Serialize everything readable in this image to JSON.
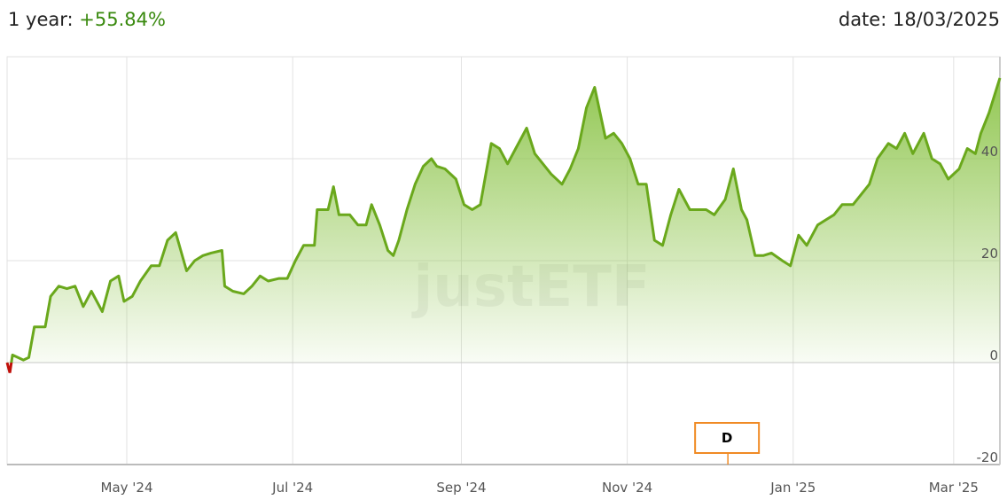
{
  "header": {
    "period_label": "1 year:",
    "period_value": "+55.84%",
    "date_label": "date: 18/03/2025"
  },
  "colors": {
    "line": "#6aa81c",
    "negative": "#c0100a",
    "fill_top": "#8cc449",
    "marker": "#f08a24",
    "positive_text": "#3a8a0f"
  },
  "watermark": "justETF",
  "chart_data": {
    "type": "area",
    "ylim": [
      -20,
      60
    ],
    "xlim": [
      "2024-03-18",
      "2025-03-18"
    ],
    "grid": true,
    "y_ticks": [
      {
        "value": 40,
        "label": "40"
      },
      {
        "value": 20,
        "label": "20"
      },
      {
        "value": 0,
        "label": "0"
      },
      {
        "value": -20,
        "label": "-20"
      }
    ],
    "x_ticks": [
      {
        "date": "2024-05-01",
        "label": "May '24"
      },
      {
        "date": "2024-07-01",
        "label": "Jul '24"
      },
      {
        "date": "2024-09-01",
        "label": "Sep '24"
      },
      {
        "date": "2024-11-01",
        "label": "Nov '24"
      },
      {
        "date": "2025-01-01",
        "label": "Jan '25"
      },
      {
        "date": "2025-03-01",
        "label": "Mar '25"
      }
    ],
    "markers": [
      {
        "date": "2024-12-08",
        "label": "D"
      }
    ],
    "series": [
      {
        "points": [
          [
            "2024-03-18",
            0
          ],
          [
            "2024-03-19",
            -2
          ],
          [
            "2024-03-20",
            1.5
          ],
          [
            "2024-03-24",
            0.5
          ],
          [
            "2024-03-26",
            1
          ],
          [
            "2024-03-28",
            7
          ],
          [
            "2024-04-01",
            7
          ],
          [
            "2024-04-03",
            13
          ],
          [
            "2024-04-06",
            15
          ],
          [
            "2024-04-09",
            14.5
          ],
          [
            "2024-04-12",
            15
          ],
          [
            "2024-04-15",
            11
          ],
          [
            "2024-04-18",
            14
          ],
          [
            "2024-04-22",
            10
          ],
          [
            "2024-04-25",
            16
          ],
          [
            "2024-04-28",
            17
          ],
          [
            "2024-04-30",
            12
          ],
          [
            "2024-05-03",
            13
          ],
          [
            "2024-05-06",
            16
          ],
          [
            "2024-05-10",
            19
          ],
          [
            "2024-05-13",
            19
          ],
          [
            "2024-05-16",
            24
          ],
          [
            "2024-05-19",
            25.5
          ],
          [
            "2024-05-23",
            18
          ],
          [
            "2024-05-26",
            20
          ],
          [
            "2024-05-29",
            21
          ],
          [
            "2024-06-01",
            21.5
          ],
          [
            "2024-06-05",
            22
          ],
          [
            "2024-06-06",
            15
          ],
          [
            "2024-06-09",
            14
          ],
          [
            "2024-06-13",
            13.5
          ],
          [
            "2024-06-16",
            15
          ],
          [
            "2024-06-19",
            17
          ],
          [
            "2024-06-22",
            16
          ],
          [
            "2024-06-26",
            16.5
          ],
          [
            "2024-06-29",
            16.5
          ],
          [
            "2024-07-02",
            20
          ],
          [
            "2024-07-05",
            23
          ],
          [
            "2024-07-09",
            23
          ],
          [
            "2024-07-10",
            30
          ],
          [
            "2024-07-14",
            30
          ],
          [
            "2024-07-16",
            34.5
          ],
          [
            "2024-07-18",
            29
          ],
          [
            "2024-07-22",
            29
          ],
          [
            "2024-07-25",
            27
          ],
          [
            "2024-07-28",
            27
          ],
          [
            "2024-07-30",
            31
          ],
          [
            "2024-08-02",
            27
          ],
          [
            "2024-08-05",
            22
          ],
          [
            "2024-08-07",
            21
          ],
          [
            "2024-08-09",
            24
          ],
          [
            "2024-08-12",
            30
          ],
          [
            "2024-08-15",
            35
          ],
          [
            "2024-08-18",
            38.5
          ],
          [
            "2024-08-21",
            40
          ],
          [
            "2024-08-23",
            38.5
          ],
          [
            "2024-08-26",
            38
          ],
          [
            "2024-08-30",
            36
          ],
          [
            "2024-09-02",
            31
          ],
          [
            "2024-09-05",
            30
          ],
          [
            "2024-09-08",
            31
          ],
          [
            "2024-09-12",
            43
          ],
          [
            "2024-09-15",
            42
          ],
          [
            "2024-09-18",
            39
          ],
          [
            "2024-09-21",
            42
          ],
          [
            "2024-09-25",
            46
          ],
          [
            "2024-09-28",
            41
          ],
          [
            "2024-10-01",
            39
          ],
          [
            "2024-10-04",
            37
          ],
          [
            "2024-10-08",
            35
          ],
          [
            "2024-10-11",
            38
          ],
          [
            "2024-10-14",
            42
          ],
          [
            "2024-10-17",
            50
          ],
          [
            "2024-10-20",
            54
          ],
          [
            "2024-10-24",
            44
          ],
          [
            "2024-10-27",
            45
          ],
          [
            "2024-10-30",
            43
          ],
          [
            "2024-11-02",
            40
          ],
          [
            "2024-11-05",
            35
          ],
          [
            "2024-11-08",
            35
          ],
          [
            "2024-11-11",
            24
          ],
          [
            "2024-11-14",
            23
          ],
          [
            "2024-11-17",
            29
          ],
          [
            "2024-11-20",
            34
          ],
          [
            "2024-11-24",
            30
          ],
          [
            "2024-11-27",
            30
          ],
          [
            "2024-11-30",
            30
          ],
          [
            "2024-12-03",
            29
          ],
          [
            "2024-12-07",
            32
          ],
          [
            "2024-12-10",
            38
          ],
          [
            "2024-12-13",
            30
          ],
          [
            "2024-12-15",
            28
          ],
          [
            "2024-12-18",
            21
          ],
          [
            "2024-12-21",
            21
          ],
          [
            "2024-12-24",
            21.5
          ],
          [
            "2024-12-28",
            20
          ],
          [
            "2024-12-31",
            19
          ],
          [
            "2025-01-03",
            25
          ],
          [
            "2025-01-06",
            23
          ],
          [
            "2025-01-10",
            27
          ],
          [
            "2025-01-13",
            28
          ],
          [
            "2025-01-16",
            29
          ],
          [
            "2025-01-19",
            31
          ],
          [
            "2025-01-23",
            31
          ],
          [
            "2025-01-26",
            33
          ],
          [
            "2025-01-29",
            35
          ],
          [
            "2025-02-01",
            40
          ],
          [
            "2025-02-05",
            43
          ],
          [
            "2025-02-08",
            42
          ],
          [
            "2025-02-11",
            45
          ],
          [
            "2025-02-14",
            41
          ],
          [
            "2025-02-18",
            45
          ],
          [
            "2025-02-21",
            40
          ],
          [
            "2025-02-24",
            39
          ],
          [
            "2025-02-27",
            36
          ],
          [
            "2025-03-03",
            38
          ],
          [
            "2025-03-06",
            42
          ],
          [
            "2025-03-09",
            41
          ],
          [
            "2025-03-11",
            45
          ],
          [
            "2025-03-14",
            49
          ],
          [
            "2025-03-18",
            55.84
          ]
        ]
      }
    ]
  }
}
